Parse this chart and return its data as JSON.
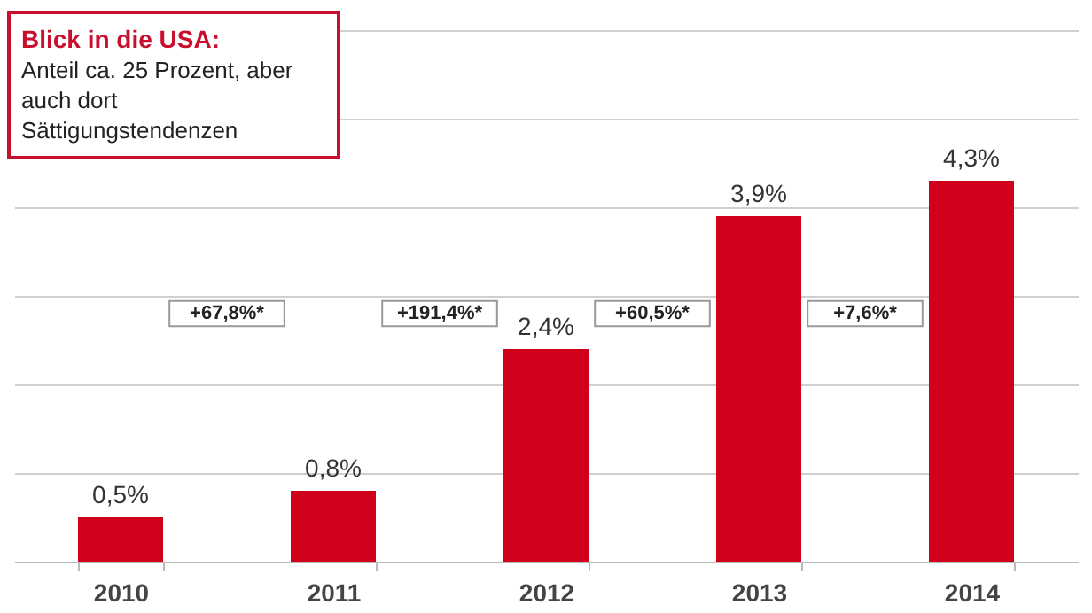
{
  "chart_data": {
    "type": "bar",
    "categories": [
      "2010",
      "2011",
      "2012",
      "2013",
      "2014"
    ],
    "values": [
      0.5,
      0.8,
      2.4,
      3.9,
      4.3
    ],
    "value_labels": [
      "0,5%",
      "0,8%",
      "2,4%",
      "3,9%",
      "4,3%"
    ],
    "color": "#d0021b",
    "ylim": [
      0,
      6
    ],
    "yticks": [
      0,
      1,
      2,
      3,
      4,
      5,
      6
    ],
    "grid": "y",
    "tick_labels": "x",
    "annotations": [
      "Blick in die USA:",
      "Anteil ca. 25 Prozent, aber auch dort Sättigungstendenzen",
      "+67,8%*",
      "+191,4%*",
      "+60,5%*",
      "+7,6%*"
    ]
  }
}
